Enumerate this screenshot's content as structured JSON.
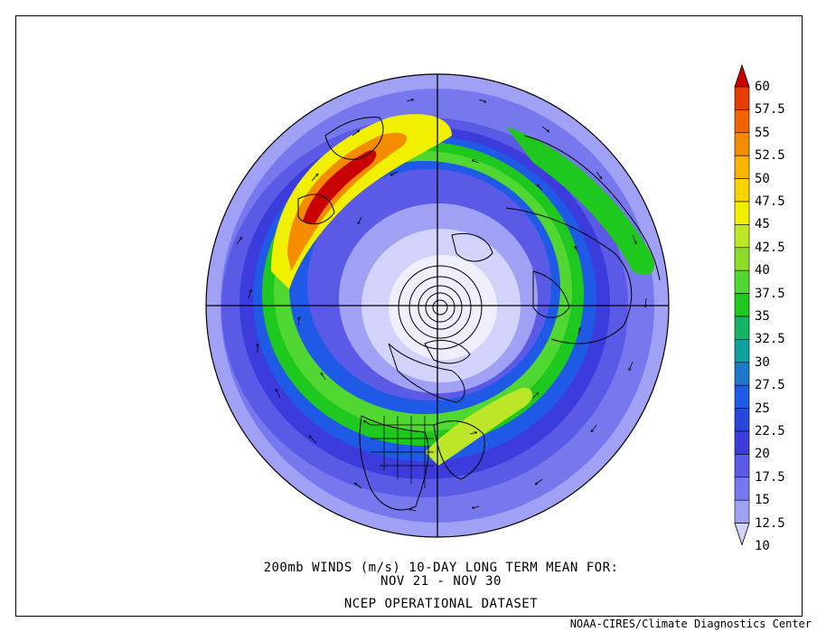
{
  "caption": {
    "line1": "200mb WINDS (m/s)   10-DAY LONG TERM MEAN FOR:",
    "line2": "NOV 21 - NOV 30",
    "line3": "NCEP OPERATIONAL DATASET"
  },
  "credit": "NOAA-CIRES/Climate Diagnostics Center",
  "colorbar": {
    "levels": [
      "60",
      "57.5",
      "55",
      "52.5",
      "50",
      "47.5",
      "45",
      "42.5",
      "40",
      "37.5",
      "35",
      "32.5",
      "30",
      "27.5",
      "25",
      "22.5",
      "20",
      "17.5",
      "15",
      "12.5",
      "10"
    ],
    "colors": [
      "#c80000",
      "#e63c00",
      "#f06400",
      "#f58c00",
      "#f9b400",
      "#fad200",
      "#f0f000",
      "#bee628",
      "#8cdc28",
      "#50d732",
      "#1ec81e",
      "#14b464",
      "#10a0a0",
      "#1e78c8",
      "#1e5ae6",
      "#2846dc",
      "#3c3cdc",
      "#5a5ae6",
      "#7878ee",
      "#a0a0f4",
      "#d2d2fa"
    ]
  },
  "map_layers": {
    "background": "#e6e6f8",
    "jet_colors": [
      "#3c3cdc",
      "#5a5ae6",
      "#7878ee",
      "#1ec81e",
      "#50d732",
      "#f0f000",
      "#f58c00",
      "#e63c00",
      "#c80000"
    ]
  }
}
